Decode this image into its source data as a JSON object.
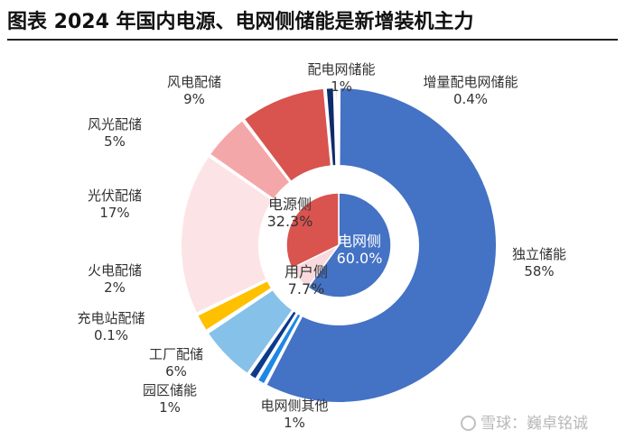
{
  "title": "图表 2024 年国内电源、电网侧储能是新增装机主力",
  "watermark": "雪球：巍卓铭诚",
  "chart_data": {
    "type": "pie",
    "subtype": "nested-donut",
    "title": "图表 2024 年国内电源、电网侧储能是新增装机主力",
    "inner": [
      {
        "name": "电网侧",
        "value": 60.0,
        "label": "60.0%",
        "color": "#4472C4",
        "label_color": "#ffffff"
      },
      {
        "name": "用户侧",
        "value": 7.7,
        "label": "7.7%",
        "color": "#F8D9DD",
        "label_color": "#333333"
      },
      {
        "name": "电源侧",
        "value": 32.3,
        "label": "32.3%",
        "color": "#D9534F",
        "label_color": "#333333"
      }
    ],
    "outer": [
      {
        "name": "独立储能",
        "value": 58,
        "label": "58%",
        "color": "#4472C4"
      },
      {
        "name": "电网侧其他",
        "value": 1,
        "label": "1%",
        "color": "#1E88E5"
      },
      {
        "name": "园区储能",
        "value": 1,
        "label": "1%",
        "color": "#0D3B8C"
      },
      {
        "name": "工厂配储",
        "value": 6,
        "label": "6%",
        "color": "#85C1E9"
      },
      {
        "name": "充电站配储",
        "value": 0.1,
        "label": "0.1%",
        "color": "#F4B942"
      },
      {
        "name": "火电配储",
        "value": 2,
        "label": "2%",
        "color": "#FFC000"
      },
      {
        "name": "光伏配储",
        "value": 17,
        "label": "17%",
        "color": "#FCE4E6"
      },
      {
        "name": "风光配储",
        "value": 5,
        "label": "5%",
        "color": "#F4A7A9"
      },
      {
        "name": "风电配储",
        "value": 9,
        "label": "9%",
        "color": "#D9534F"
      },
      {
        "name": "配电网储能",
        "value": 1,
        "label": "1%",
        "color": "#0D2C6B"
      },
      {
        "name": "增量配电网储能",
        "value": 0.4,
        "label": "0.4%",
        "color": "#4472C4"
      }
    ]
  }
}
